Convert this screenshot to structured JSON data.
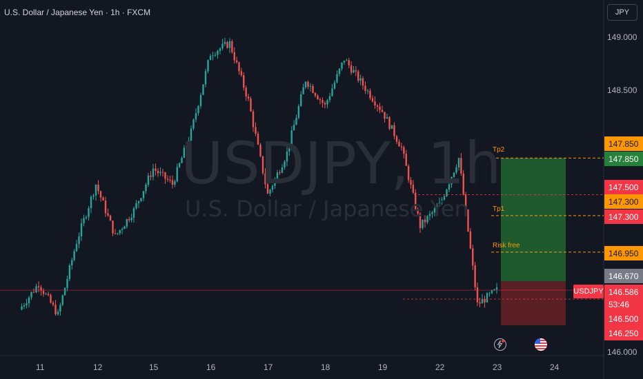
{
  "header": {
    "title": "U.S. Dollar / Japanese Yen · 1h · FXCM",
    "currency_button": "JPY"
  },
  "watermark": {
    "symbol": "USDJPY, 1h",
    "name": "U.S. Dollar / Japanese Yen"
  },
  "price_axis": {
    "ticks": [
      "149.000",
      "148.500",
      "146.000"
    ]
  },
  "price_tags": {
    "tp2_orange": "147.850",
    "tp2_green": "147.850",
    "red_147500": "147.500",
    "tp1_orange": "147.300",
    "tp1_red": "147.300",
    "risk_free": "146.950",
    "gray_146670": "146.670",
    "current_price": "146.586",
    "countdown": "53:46",
    "red_146500": "146.500",
    "red_146250": "146.250"
  },
  "symbol_tag": "USDJPY",
  "levels": {
    "tp2": "Tp2",
    "tp1": "Tp1",
    "risk_free": "Risk free"
  },
  "icons": {
    "event": "lightning-icon",
    "flag": "us-flag-icon"
  },
  "colors": {
    "background": "#131722",
    "up": "#26a69a",
    "down": "#ef5350",
    "target_zone": "#1f5e2e",
    "stop_zone": "#5e1f26",
    "level_line": "#ff9800",
    "accent_red": "#f23645"
  },
  "chart_data": {
    "type": "candlestick",
    "title": "U.S. Dollar / Japanese Yen · 1h · FXCM",
    "xlabel": "",
    "ylabel": "",
    "x_ticks": [
      "11",
      "12",
      "15",
      "16",
      "17",
      "18",
      "19",
      "22",
      "23",
      "24"
    ],
    "ylim": [
      145.97,
      149.37
    ],
    "grid": false,
    "anchors": [
      {
        "date": "11",
        "price": 146.4
      },
      {
        "date": "11",
        "price": 146.65
      },
      {
        "date": "11",
        "price": 146.35
      },
      {
        "date": "12",
        "price": 147.05
      },
      {
        "date": "12",
        "price": 147.6
      },
      {
        "date": "12",
        "price": 147.1
      },
      {
        "date": "15",
        "price": 147.35
      },
      {
        "date": "15",
        "price": 147.75
      },
      {
        "date": "15",
        "price": 147.6
      },
      {
        "date": "16",
        "price": 148.1
      },
      {
        "date": "16",
        "price": 148.85
      },
      {
        "date": "16",
        "price": 148.95
      },
      {
        "date": "17",
        "price": 148.4
      },
      {
        "date": "17",
        "price": 147.5
      },
      {
        "date": "17",
        "price": 147.9
      },
      {
        "date": "18",
        "price": 148.6
      },
      {
        "date": "18",
        "price": 148.35
      },
      {
        "date": "18",
        "price": 148.8
      },
      {
        "date": "19",
        "price": 148.55
      },
      {
        "date": "19",
        "price": 148.3
      },
      {
        "date": "19",
        "price": 147.95
      },
      {
        "date": "22",
        "price": 147.2
      },
      {
        "date": "22",
        "price": 147.4
      },
      {
        "date": "22",
        "price": 147.85
      },
      {
        "date": "23",
        "price": 146.45
      },
      {
        "date": "23",
        "price": 146.586
      }
    ],
    "position": {
      "side": "long",
      "entry": 146.586,
      "take_profit": 147.85,
      "stop_loss": 146.25,
      "levels": {
        "Tp2": 147.85,
        "Tp1": 147.3,
        "Risk free": 146.95
      }
    },
    "last_price": 146.586
  }
}
